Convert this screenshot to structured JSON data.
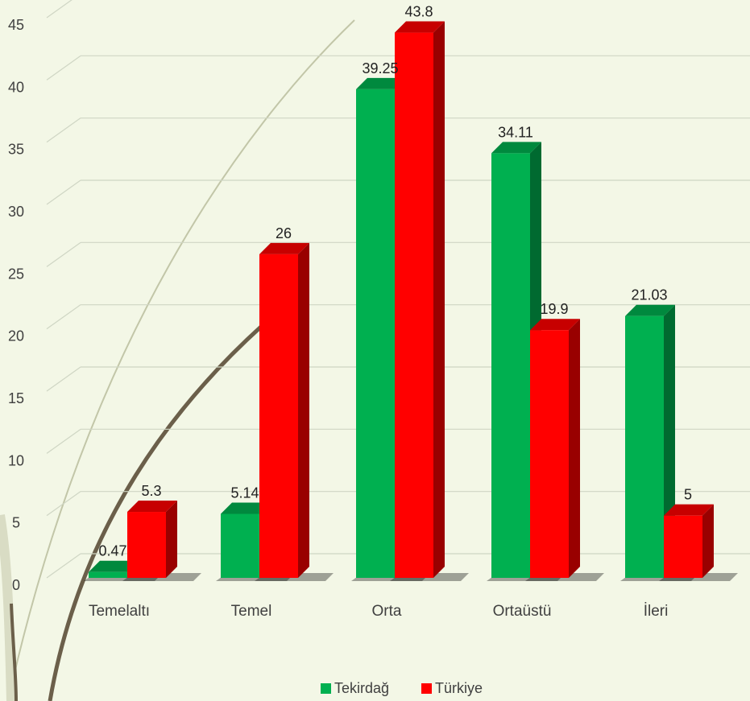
{
  "chart_data": {
    "type": "bar",
    "title": "",
    "xlabel": "",
    "ylabel": "",
    "categories": [
      "Temelaltı",
      "Temel",
      "Orta",
      "Ortaüstü",
      "İleri"
    ],
    "series": [
      {
        "name": "Tekirdağ",
        "color": "#00b050",
        "values": [
          0.47,
          5.14,
          39.25,
          34.11,
          21.03
        ]
      },
      {
        "name": "Türkiye",
        "color": "#ff0000",
        "values": [
          5.3,
          26,
          43.8,
          19.9,
          5
        ]
      }
    ],
    "value_labels": [
      [
        "0.47",
        "5.14",
        "39.25",
        "34.11",
        "21.03"
      ],
      [
        "5.3",
        "26",
        "43.8",
        "19.9",
        "5"
      ]
    ],
    "ylim": [
      0,
      45
    ],
    "yticks": [
      "0",
      "5",
      "10",
      "15",
      "20",
      "25",
      "30",
      "35",
      "40",
      "45"
    ],
    "grid": true,
    "legend_position": "bottom",
    "style": "3d-clustered-column"
  }
}
